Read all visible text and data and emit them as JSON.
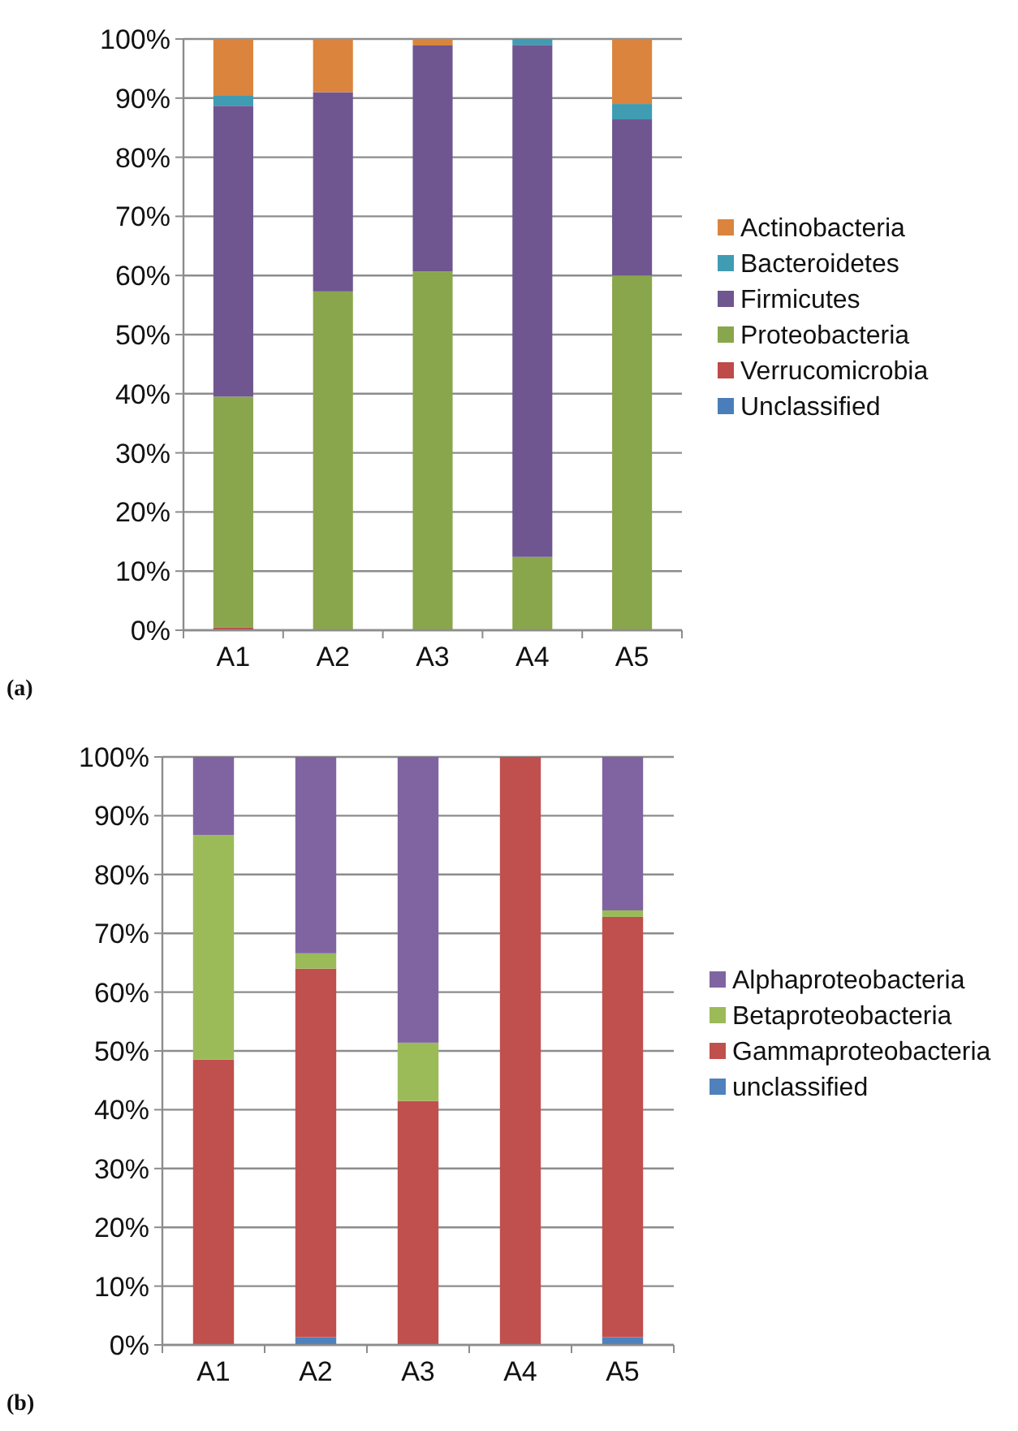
{
  "chart_data": [
    {
      "type": "bar",
      "stacked": true,
      "categories": [
        "A1",
        "A2",
        "A3",
        "A4",
        "A5"
      ],
      "ylim": [
        0,
        100
      ],
      "yticks": [
        {
          "value": 0,
          "label": "0%"
        },
        {
          "value": 10,
          "label": "10%"
        },
        {
          "value": 20,
          "label": "20%"
        },
        {
          "value": 30,
          "label": "30%"
        },
        {
          "value": 40,
          "label": "40%"
        },
        {
          "value": 50,
          "label": "50%"
        },
        {
          "value": 60,
          "label": "60%"
        },
        {
          "value": 70,
          "label": "70%"
        },
        {
          "value": 80,
          "label": "80%"
        },
        {
          "value": 90,
          "label": "90%"
        },
        {
          "value": 100,
          "label": "100%"
        }
      ],
      "grid": "y",
      "legend": "right",
      "annotations": [
        "(a)"
      ],
      "series": [
        {
          "name": "Unclassified",
          "color": "#4a7ebb",
          "values": [
            null,
            0,
            0,
            0,
            0
          ]
        },
        {
          "name": "Verrucomicrobia",
          "color": "#be4b48",
          "values": [
            0.5,
            0,
            0,
            0,
            0
          ]
        },
        {
          "name": "Proteobacteria",
          "color": "#8aa64c",
          "values": [
            39,
            57.3,
            60.7,
            12.4,
            60
          ]
        },
        {
          "name": "Firmicutes",
          "color": "#6f5690",
          "values": [
            49.2,
            33.7,
            38.2,
            86.6,
            26.4
          ]
        },
        {
          "name": "Bacteroidetes",
          "color": "#3f9cb3",
          "values": [
            1.8,
            0,
            0,
            1,
            2.6
          ]
        },
        {
          "name": "Actinobacteria",
          "color": "#da843d",
          "values": [
            9.5,
            9,
            1.1,
            0,
            11
          ]
        }
      ]
    },
    {
      "type": "bar",
      "stacked": true,
      "categories": [
        "A1",
        "A2",
        "A3",
        "A4",
        "A5"
      ],
      "ylim": [
        0,
        100
      ],
      "yticks": [
        {
          "value": 0,
          "label": "0%"
        },
        {
          "value": 10,
          "label": "10%"
        },
        {
          "value": 20,
          "label": "20%"
        },
        {
          "value": 30,
          "label": "30%"
        },
        {
          "value": 40,
          "label": "40%"
        },
        {
          "value": 50,
          "label": "50%"
        },
        {
          "value": 60,
          "label": "60%"
        },
        {
          "value": 70,
          "label": "70%"
        },
        {
          "value": 80,
          "label": "80%"
        },
        {
          "value": 90,
          "label": "90%"
        },
        {
          "value": 100,
          "label": "100%"
        }
      ],
      "grid": "y",
      "legend": "right",
      "annotations": [
        "(b)"
      ],
      "series": [
        {
          "name": "unclassified",
          "color": "#4f81bd",
          "values": [
            0,
            1.3,
            0,
            0,
            1.3
          ]
        },
        {
          "name": "Gammaproteobacteria",
          "color": "#c0504d",
          "values": [
            48.5,
            62.7,
            41.5,
            100,
            71.5
          ]
        },
        {
          "name": "Betaproteobacteria",
          "color": "#9bbb59",
          "values": [
            38.2,
            2.6,
            9.9,
            0,
            1.1
          ]
        },
        {
          "name": "Alphaproteobacteria",
          "color": "#8064a2",
          "values": [
            13.3,
            33.4,
            48.6,
            0,
            26.1
          ]
        }
      ]
    }
  ]
}
